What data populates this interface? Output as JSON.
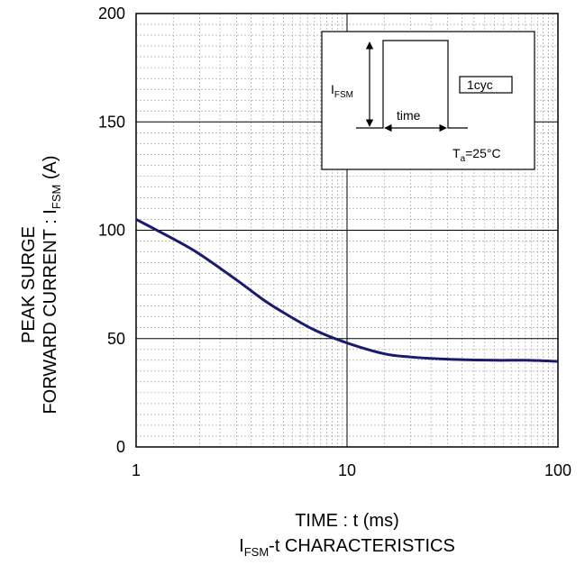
{
  "chart_data": {
    "type": "line",
    "x_scale": "log",
    "xlim": [
      1,
      100
    ],
    "ylim": [
      0,
      200
    ],
    "x_ticks": [
      "1",
      "10",
      "100"
    ],
    "y_ticks": [
      "0",
      "50",
      "100",
      "150",
      "200"
    ],
    "grid": true,
    "xlabel": "TIME : t (ms)",
    "title": {
      "main": "I",
      "sub": "FSM",
      "rest": "-t CHARACTERISTICS"
    },
    "ylabel": {
      "line1": "PEAK SURGE",
      "line2_main": "FORWARD CURRENT : I",
      "line2_sub": "FSM",
      "line2_rest": " (A)"
    },
    "series": [
      {
        "color": "#1a1a6e",
        "x": [
          1,
          1.5,
          2,
          3,
          4,
          5,
          7,
          10,
          15,
          20,
          30,
          50,
          70,
          100
        ],
        "y": [
          105,
          96,
          89,
          77,
          68,
          62,
          54,
          48,
          43,
          41.5,
          40.5,
          40,
          40,
          39.5
        ]
      }
    ],
    "inset": {
      "ifsm_main": "I",
      "ifsm_sub": "FSM",
      "time_label": "time",
      "cycle_label": "1cyc",
      "ta_main": "T",
      "ta_sub": "a",
      "ta_rest": "=25°C"
    }
  }
}
